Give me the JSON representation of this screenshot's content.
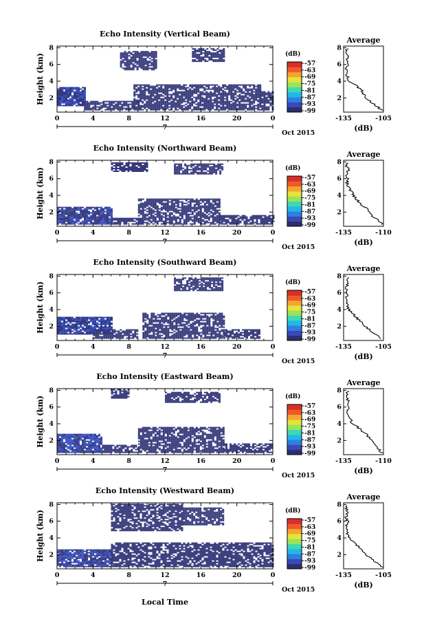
{
  "figure": {
    "xlabel": "Local Time",
    "date_label": "Oct 2015",
    "ylabel": "Height (km)",
    "colorbar_unit": "(dB)",
    "colorbar_ticks": [
      "-57",
      "-63",
      "-69",
      "-75",
      "-81",
      "-87",
      "-93",
      "-99"
    ],
    "colorbar_colors": [
      "#2a2f6e",
      "#3a48b8",
      "#2f7fe0",
      "#21b8e8",
      "#3fd9b0",
      "#9be35a",
      "#e6e43a",
      "#f5a630",
      "#ef5a2a",
      "#d7302a"
    ],
    "echo_color": "#35397a",
    "echo_highlight": "#3a55c8",
    "x_ticks": [
      "0",
      "4",
      "8",
      "12",
      "16",
      "20",
      "0"
    ],
    "x_day_label": "7",
    "y_ticks": [
      "2",
      "4",
      "6",
      "8"
    ],
    "avg_title": "Average",
    "avg_xlabel": "(dB)"
  },
  "chart_data": [
    {
      "type": "heatmap",
      "title": "Echo Intensity (Vertical Beam)",
      "xlabel": "Local Time",
      "ylabel": "Height (km)",
      "xlim": [
        0,
        24
      ],
      "ylim": [
        0.3,
        8.2
      ],
      "colorbar": {
        "unit": "dB",
        "range": [
          -99,
          -57
        ]
      },
      "echo_regions": [
        {
          "x": [
            0,
            3
          ],
          "y": [
            1.0,
            3.2
          ],
          "dense": true
        },
        {
          "x": [
            3,
            9
          ],
          "y": [
            0.5,
            1.5
          ]
        },
        {
          "x": [
            8.5,
            22.5
          ],
          "y": [
            0.5,
            3.6
          ]
        },
        {
          "x": [
            22.5,
            24
          ],
          "y": [
            0.5,
            2.8
          ]
        },
        {
          "x": [
            7,
            11
          ],
          "y": [
            5.3,
            7.6
          ]
        },
        {
          "x": [
            15,
            18.5
          ],
          "y": [
            6.3,
            7.8
          ]
        }
      ],
      "average_profile": {
        "title": "Average",
        "xlabel": "(dB)",
        "x_ticks": [
          "-135",
          "-105"
        ],
        "xlim": [
          -135,
          -105
        ],
        "height": [
          0.5,
          1,
          1.5,
          2,
          2.5,
          3,
          3.5,
          4,
          4.5,
          5,
          5.5,
          6,
          6.5,
          7,
          7.5,
          8
        ],
        "value": [
          -106,
          -110,
          -114,
          -118,
          -120,
          -122,
          -126,
          -131,
          -132,
          -133,
          -133,
          -132,
          -133,
          -132,
          -133,
          -132
        ]
      }
    },
    {
      "type": "heatmap",
      "title": "Echo Intensity (Northward Beam)",
      "xlabel": "Local Time",
      "ylabel": "Height (km)",
      "xlim": [
        0,
        24
      ],
      "ylim": [
        0.3,
        8.2
      ],
      "colorbar": {
        "unit": "dB",
        "range": [
          -99,
          -57
        ]
      },
      "echo_regions": [
        {
          "x": [
            0,
            6
          ],
          "y": [
            0.5,
            2.6
          ],
          "dense": true
        },
        {
          "x": [
            6,
            9.5
          ],
          "y": [
            0.5,
            1.3
          ]
        },
        {
          "x": [
            9,
            18
          ],
          "y": [
            0.5,
            3.5
          ]
        },
        {
          "x": [
            18,
            24
          ],
          "y": [
            0.5,
            1.5
          ]
        },
        {
          "x": [
            13,
            18.5
          ],
          "y": [
            6.5,
            7.8
          ]
        },
        {
          "x": [
            6,
            10
          ],
          "y": [
            6.8,
            7.8
          ]
        }
      ],
      "average_profile": {
        "title": "Average",
        "xlabel": "(dB)",
        "x_ticks": [
          "-135",
          "-110"
        ],
        "xlim": [
          -135,
          -110
        ],
        "height": [
          0.5,
          1,
          1.5,
          2,
          2.5,
          3,
          3.5,
          4,
          4.5,
          5,
          5.5,
          6,
          6.5,
          7,
          7.5,
          8
        ],
        "value": [
          -111,
          -113,
          -117,
          -119,
          -121,
          -124,
          -127,
          -129,
          -130,
          -132,
          -133,
          -132,
          -133,
          -132,
          -133,
          -132
        ]
      }
    },
    {
      "type": "heatmap",
      "title": "Echo Intensity (Southward Beam)",
      "xlabel": "Local Time",
      "ylabel": "Height (km)",
      "xlim": [
        0,
        24
      ],
      "ylim": [
        0.3,
        8.2
      ],
      "colorbar": {
        "unit": "dB",
        "range": [
          -99,
          -57
        ]
      },
      "echo_regions": [
        {
          "x": [
            0,
            6
          ],
          "y": [
            1.0,
            3.0
          ],
          "dense": true
        },
        {
          "x": [
            4,
            9
          ],
          "y": [
            0.5,
            1.5
          ]
        },
        {
          "x": [
            9.5,
            18.5
          ],
          "y": [
            0.5,
            3.6
          ]
        },
        {
          "x": [
            18.5,
            22.5
          ],
          "y": [
            0.5,
            1.5
          ]
        },
        {
          "x": [
            13,
            18.5
          ],
          "y": [
            6.2,
            7.8
          ]
        }
      ],
      "average_profile": {
        "title": "Average",
        "xlabel": "(dB)",
        "x_ticks": [
          "-135",
          "-105"
        ],
        "xlim": [
          -135,
          -105
        ],
        "height": [
          0.5,
          1,
          1.5,
          2,
          2.5,
          3,
          3.5,
          4,
          4.5,
          5,
          5.5,
          6,
          6.5,
          7,
          7.5,
          8
        ],
        "value": [
          -107,
          -111,
          -115,
          -119,
          -122,
          -125,
          -128,
          -131,
          -132,
          -133,
          -133,
          -132,
          -133,
          -132,
          -133,
          -132
        ]
      }
    },
    {
      "type": "heatmap",
      "title": "Echo Intensity (Eastward Beam)",
      "xlabel": "Local Time",
      "ylabel": "Height (km)",
      "xlim": [
        0,
        24
      ],
      "ylim": [
        0.3,
        8.2
      ],
      "colorbar": {
        "unit": "dB",
        "range": [
          -99,
          -57
        ]
      },
      "echo_regions": [
        {
          "x": [
            0,
            5
          ],
          "y": [
            0.5,
            2.8
          ],
          "dense": true
        },
        {
          "x": [
            5,
            9
          ],
          "y": [
            0.5,
            1.4
          ]
        },
        {
          "x": [
            9,
            18.5
          ],
          "y": [
            0.5,
            3.6
          ]
        },
        {
          "x": [
            18.5,
            24
          ],
          "y": [
            0.5,
            1.5
          ]
        },
        {
          "x": [
            6,
            8
          ],
          "y": [
            7.0,
            8.0
          ]
        },
        {
          "x": [
            12,
            18
          ],
          "y": [
            6.5,
            7.8
          ]
        }
      ],
      "average_profile": {
        "title": "Average",
        "xlabel": "(dB)",
        "x_ticks": [
          "-135",
          "-110"
        ],
        "xlim": [
          -135,
          -110
        ],
        "height": [
          0.5,
          1,
          1.5,
          2,
          2.5,
          3,
          3.5,
          4,
          4.5,
          5,
          5.5,
          6,
          6.5,
          7,
          7.5,
          8
        ],
        "value": [
          -111,
          -113,
          -115,
          -117,
          -120,
          -122,
          -126,
          -129,
          -131,
          -132,
          -133,
          -132,
          -133,
          -132,
          -133,
          -132
        ]
      }
    },
    {
      "type": "heatmap",
      "title": "Echo Intensity (Westward Beam)",
      "xlabel": "Local Time",
      "ylabel": "Height (km)",
      "xlim": [
        0,
        24
      ],
      "ylim": [
        0.3,
        8.2
      ],
      "colorbar": {
        "unit": "dB",
        "range": [
          -99,
          -57
        ]
      },
      "echo_regions": [
        {
          "x": [
            0,
            6
          ],
          "y": [
            0.5,
            2.6
          ],
          "dense": true
        },
        {
          "x": [
            6,
            24
          ],
          "y": [
            0.5,
            3.4
          ]
        },
        {
          "x": [
            6,
            14
          ],
          "y": [
            4.8,
            8.0
          ]
        },
        {
          "x": [
            14,
            18.5
          ],
          "y": [
            5.5,
            7.5
          ]
        }
      ],
      "average_profile": {
        "title": "Average",
        "xlabel": "(dB)",
        "x_ticks": [
          "-135",
          "-105"
        ],
        "xlim": [
          -135,
          -105
        ],
        "height": [
          0.5,
          1,
          1.5,
          2,
          2.5,
          3,
          3.5,
          4,
          4.5,
          5,
          5.5,
          6,
          6.5,
          7,
          7.5,
          8
        ],
        "value": [
          -106,
          -110,
          -114,
          -118,
          -121,
          -124,
          -127,
          -130,
          -132,
          -133,
          -133,
          -132,
          -133,
          -132,
          -133,
          -132
        ]
      }
    }
  ]
}
